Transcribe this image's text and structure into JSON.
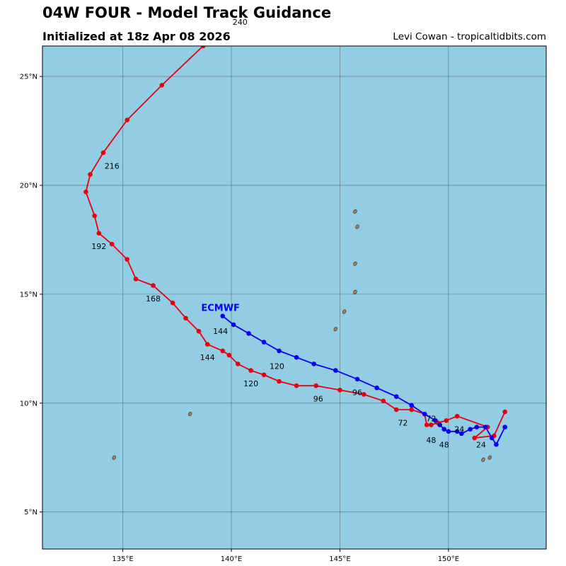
{
  "header": {
    "title": "04W FOUR - Model Track Guidance",
    "subtitle": "Initialized at 18z Apr 08 2026",
    "credit": "Levi Cowan - tropicaltidbits.com"
  },
  "colors": {
    "ocean": "#93cde3",
    "land": "#a67c52",
    "grid": "#5f6f75",
    "track_red": "#e8000b",
    "track_blue": "#0a00f0"
  },
  "chart_data": {
    "type": "map-track",
    "lon_range": [
      131.3,
      154.5
    ],
    "lat_range": [
      3.3,
      26.4
    ],
    "lon_ticks": [
      {
        "value": 135,
        "label": "135°E"
      },
      {
        "value": 140,
        "label": "140°E"
      },
      {
        "value": 145,
        "label": "145°E"
      },
      {
        "value": 150,
        "label": "150°E"
      }
    ],
    "lat_ticks": [
      {
        "value": 5,
        "label": "5°N"
      },
      {
        "value": 10,
        "label": "10°N"
      },
      {
        "value": 15,
        "label": "15°N"
      },
      {
        "value": 20,
        "label": "20°N"
      },
      {
        "value": 25,
        "label": "25°N"
      }
    ],
    "tracks": [
      {
        "name": "red-track",
        "color": "#e8000b",
        "points": [
          [
            152.6,
            9.6
          ],
          [
            152.1,
            8.5
          ],
          [
            151.2,
            8.4
          ],
          [
            151.8,
            8.9
          ],
          [
            150.4,
            9.4
          ],
          [
            149.9,
            9.2
          ],
          [
            149.5,
            9.1
          ],
          [
            149.2,
            9.0
          ],
          [
            149.0,
            9.0
          ],
          [
            148.9,
            9.5
          ],
          [
            148.3,
            9.7
          ],
          [
            147.6,
            9.7
          ],
          [
            147.0,
            10.1
          ],
          [
            146.1,
            10.4
          ],
          [
            145.0,
            10.6
          ],
          [
            143.9,
            10.8
          ],
          [
            143.0,
            10.8
          ],
          [
            142.2,
            11.0
          ],
          [
            141.5,
            11.3
          ],
          [
            140.9,
            11.5
          ],
          [
            140.3,
            11.8
          ],
          [
            139.9,
            12.2
          ],
          [
            139.6,
            12.4
          ],
          [
            138.9,
            12.7
          ],
          [
            138.5,
            13.3
          ],
          [
            137.9,
            13.9
          ],
          [
            137.3,
            14.6
          ],
          [
            136.4,
            15.4
          ],
          [
            135.6,
            15.7
          ],
          [
            135.2,
            16.6
          ],
          [
            134.5,
            17.3
          ],
          [
            133.9,
            17.8
          ],
          [
            133.7,
            18.6
          ],
          [
            133.3,
            19.7
          ],
          [
            133.5,
            20.5
          ],
          [
            134.1,
            21.5
          ],
          [
            135.2,
            23.0
          ],
          [
            136.8,
            24.6
          ],
          [
            138.7,
            26.4
          ]
        ]
      },
      {
        "name": "ecmwf-track",
        "color": "#0a00f0",
        "points": [
          [
            152.6,
            8.9
          ],
          [
            152.2,
            8.1
          ],
          [
            152.0,
            8.4
          ],
          [
            151.7,
            8.9
          ],
          [
            151.3,
            8.9
          ],
          [
            151.0,
            8.8
          ],
          [
            150.6,
            8.6
          ],
          [
            150.4,
            8.7
          ],
          [
            150.0,
            8.7
          ],
          [
            149.8,
            8.8
          ],
          [
            149.6,
            9.0
          ],
          [
            149.4,
            9.2
          ],
          [
            148.9,
            9.5
          ],
          [
            148.3,
            9.9
          ],
          [
            147.6,
            10.3
          ],
          [
            146.7,
            10.7
          ],
          [
            145.8,
            11.1
          ],
          [
            144.8,
            11.5
          ],
          [
            143.8,
            11.8
          ],
          [
            143.0,
            12.1
          ],
          [
            142.2,
            12.4
          ],
          [
            141.5,
            12.8
          ],
          [
            140.8,
            13.2
          ],
          [
            140.1,
            13.6
          ],
          [
            139.6,
            14.0
          ]
        ]
      }
    ],
    "hour_labels": [
      {
        "text": "24",
        "lon": 150.5,
        "lat": 8.8,
        "track": "red"
      },
      {
        "text": "48",
        "lon": 149.2,
        "lat": 8.3,
        "track": "red"
      },
      {
        "text": "72",
        "lon": 147.9,
        "lat": 9.1,
        "track": "red"
      },
      {
        "text": "96",
        "lon": 144.0,
        "lat": 10.2,
        "track": "red"
      },
      {
        "text": "120",
        "lon": 140.9,
        "lat": 10.9,
        "track": "red"
      },
      {
        "text": "144",
        "lon": 138.9,
        "lat": 12.1,
        "track": "red"
      },
      {
        "text": "168",
        "lon": 136.4,
        "lat": 14.8,
        "track": "red"
      },
      {
        "text": "192",
        "lon": 133.9,
        "lat": 17.2,
        "track": "red"
      },
      {
        "text": "216",
        "lon": 134.5,
        "lat": 20.9,
        "track": "red"
      },
      {
        "text": "240",
        "lon": 140.4,
        "lat": 27.5,
        "track": "red"
      },
      {
        "text": "24",
        "lon": 151.5,
        "lat": 8.1,
        "track": "blue"
      },
      {
        "text": "48",
        "lon": 149.8,
        "lat": 8.1,
        "track": "blue"
      },
      {
        "text": "72",
        "lon": 149.2,
        "lat": 9.3,
        "track": "blue"
      },
      {
        "text": "96",
        "lon": 145.8,
        "lat": 10.5,
        "track": "blue"
      },
      {
        "text": "120",
        "lon": 142.1,
        "lat": 11.7,
        "track": "blue"
      },
      {
        "text": "144",
        "lon": 139.5,
        "lat": 13.3,
        "track": "blue"
      }
    ],
    "model_labels": [
      {
        "text": "ECMWF",
        "lon": 139.5,
        "lat": 14.4,
        "color": "#0a00f0"
      }
    ],
    "islands": [
      {
        "name": "island-guam",
        "lon": 144.8,
        "lat": 13.4
      },
      {
        "name": "island-rota",
        "lon": 145.2,
        "lat": 14.2
      },
      {
        "name": "island-saipan",
        "lon": 145.7,
        "lat": 15.1
      },
      {
        "name": "island-anatahan",
        "lon": 145.7,
        "lat": 16.4
      },
      {
        "name": "island-pagan",
        "lon": 145.8,
        "lat": 18.1
      },
      {
        "name": "island-agrihan",
        "lon": 145.7,
        "lat": 18.8
      },
      {
        "name": "island-yap",
        "lon": 138.1,
        "lat": 9.5
      },
      {
        "name": "island-palau",
        "lon": 134.6,
        "lat": 7.5
      },
      {
        "name": "island-chuuk-a",
        "lon": 151.6,
        "lat": 7.4
      },
      {
        "name": "island-chuuk-b",
        "lon": 151.9,
        "lat": 7.5
      }
    ]
  }
}
